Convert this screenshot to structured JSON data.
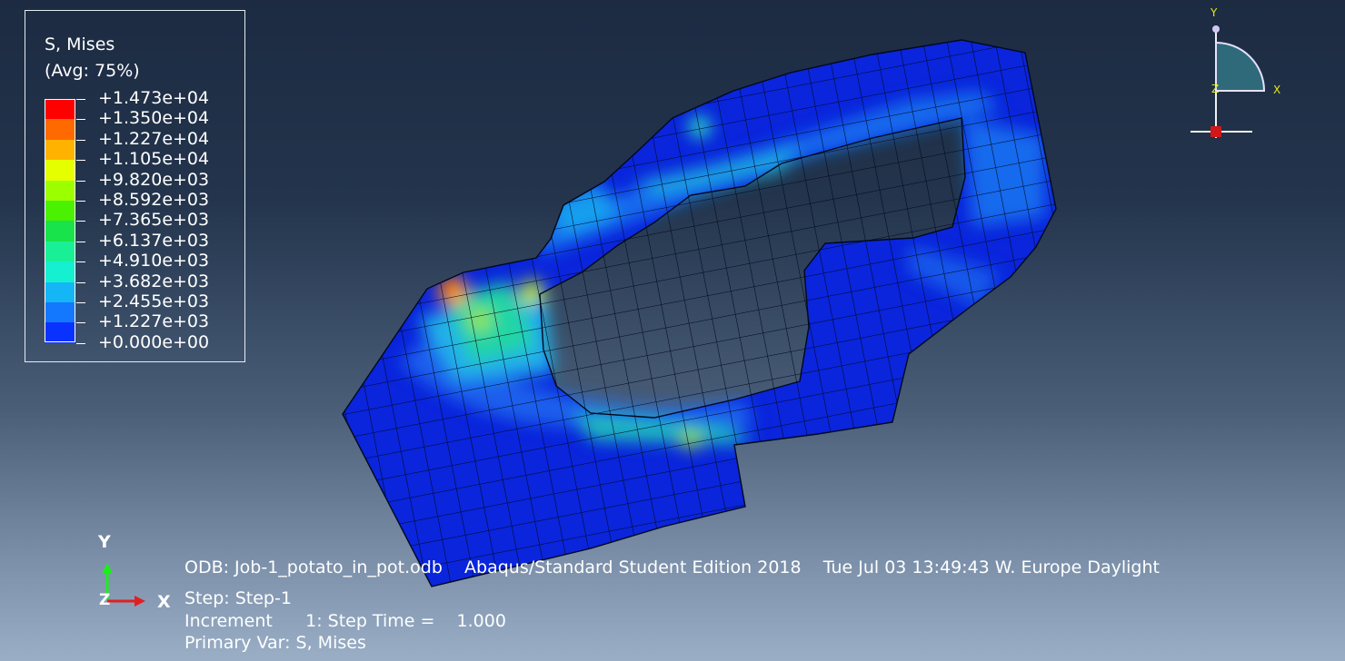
{
  "legend": {
    "title": "S, Mises",
    "subtitle": "(Avg: 75%)",
    "values": [
      "+1.473e+04",
      "+1.350e+04",
      "+1.227e+04",
      "+1.105e+04",
      "+9.820e+03",
      "+8.592e+03",
      "+7.365e+03",
      "+6.137e+03",
      "+4.910e+03",
      "+3.682e+03",
      "+2.455e+03",
      "+1.227e+03",
      "+0.000e+00"
    ],
    "colors": [
      "#ff0000",
      "#ff6a00",
      "#ffb300",
      "#e6ff00",
      "#9cff00",
      "#4af100",
      "#19e34a",
      "#19f096",
      "#14f0d0",
      "#14b6f5",
      "#1478ff",
      "#0a32ff"
    ]
  },
  "info": {
    "odb": "ODB: Job-1_potato_in_pot.odb    Abaqus/Standard Student Edition 2018    Tue Jul 03 13:49:43 W. Europe Daylight",
    "step": "Step: Step-1",
    "increment": "Increment      1: Step Time =    1.000",
    "primary": "Primary Var: S, Mises"
  },
  "triad": {
    "y": "Y",
    "x": "X",
    "z": "Z"
  },
  "view_triad": {
    "y": "Y",
    "x": "X",
    "z": "Z"
  }
}
